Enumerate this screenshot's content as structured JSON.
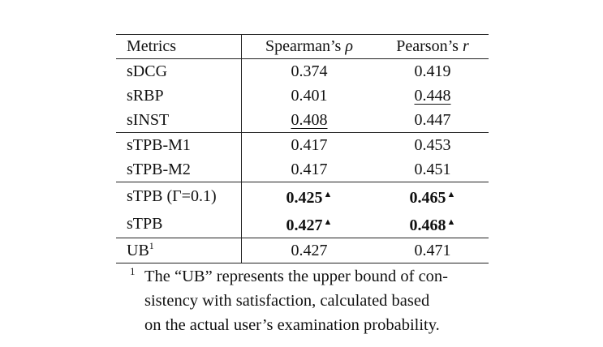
{
  "table": {
    "headers": [
      "Metrics",
      "Spearman's ρ",
      "Pearson's r"
    ],
    "header_parts": {
      "spearman_text": "Spearman’s ",
      "spearman_symbol": "ρ",
      "pearson_text": "Pearson’s ",
      "pearson_symbol": "r"
    },
    "groups": [
      {
        "rows": [
          {
            "metric": "sDCG",
            "spearman": "0.374",
            "pearson": "0.419"
          },
          {
            "metric": "sRBP",
            "spearman": "0.401",
            "pearson": "0.448",
            "pearson_underlined": true
          },
          {
            "metric": "sINST",
            "spearman": "0.408",
            "pearson": "0.447",
            "spearman_underlined": true
          }
        ]
      },
      {
        "rows": [
          {
            "metric": "sTPB-M1",
            "spearman": "0.417",
            "pearson": "0.453"
          },
          {
            "metric": "sTPB-M2",
            "spearman": "0.417",
            "pearson": "0.451"
          }
        ]
      },
      {
        "rows": [
          {
            "metric": "sTPB (Γ=0.1)",
            "spearman": "0.425",
            "pearson": "0.465",
            "bold": true,
            "significance_marker": "▲"
          },
          {
            "metric": "sTPB",
            "spearman": "0.427",
            "pearson": "0.468",
            "bold": true,
            "significance_marker": "▲"
          }
        ]
      },
      {
        "rows": [
          {
            "metric": "UB",
            "metric_footnote": "1",
            "spearman": "0.427",
            "pearson": "0.471"
          }
        ]
      }
    ]
  },
  "footnote": {
    "mark": "1",
    "text": "The “UB” represents the upper bound of con- sistency with satisfaction, calculated based on the actual user’s examination probability.",
    "lines": [
      "The “UB” represents the upper bound of con-",
      "sistency with satisfaction, calculated based",
      "on the actual user’s examination probability."
    ]
  }
}
